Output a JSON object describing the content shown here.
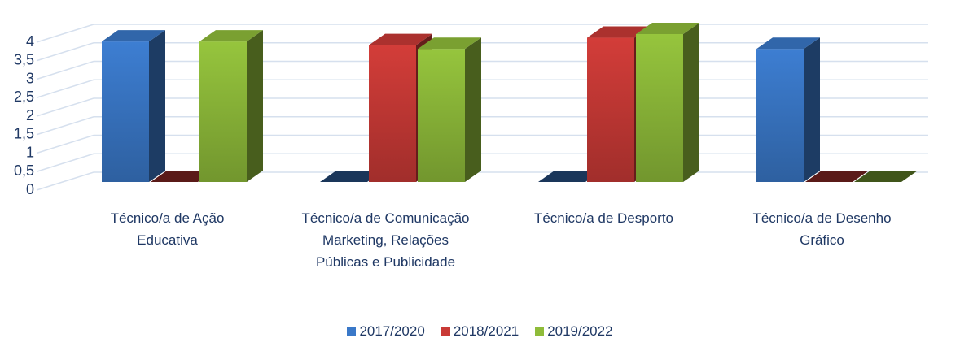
{
  "chart_data": {
    "type": "bar3d",
    "categories": [
      "Técnico/a de Ação Educativa",
      "Técnico/a de Comunicação  Marketing, Relações Públicas e Publicidade",
      "Técnico/a de Desporto",
      "Técnico/a de Desenho Gráfico"
    ],
    "series": [
      {
        "name": "2017/2020",
        "color": "#3a78c8",
        "values": [
          3.8,
          0,
          0,
          3.6
        ]
      },
      {
        "name": "2018/2021",
        "color": "#c93a36",
        "values": [
          0,
          3.7,
          3.9,
          0
        ]
      },
      {
        "name": "2019/2022",
        "color": "#8fbc3a",
        "values": [
          3.8,
          3.6,
          4,
          0
        ]
      }
    ],
    "ylim": [
      0,
      4
    ],
    "yticks": [
      0,
      {
        "value": 0.5,
        "label": "0,5"
      },
      1,
      {
        "value": 1.5,
        "label": "1,5"
      },
      2,
      {
        "value": 2.5,
        "label": "2,5"
      },
      3,
      {
        "value": 3.5,
        "label": "3,5"
      },
      4
    ],
    "grid": true,
    "legend": "bottom"
  }
}
